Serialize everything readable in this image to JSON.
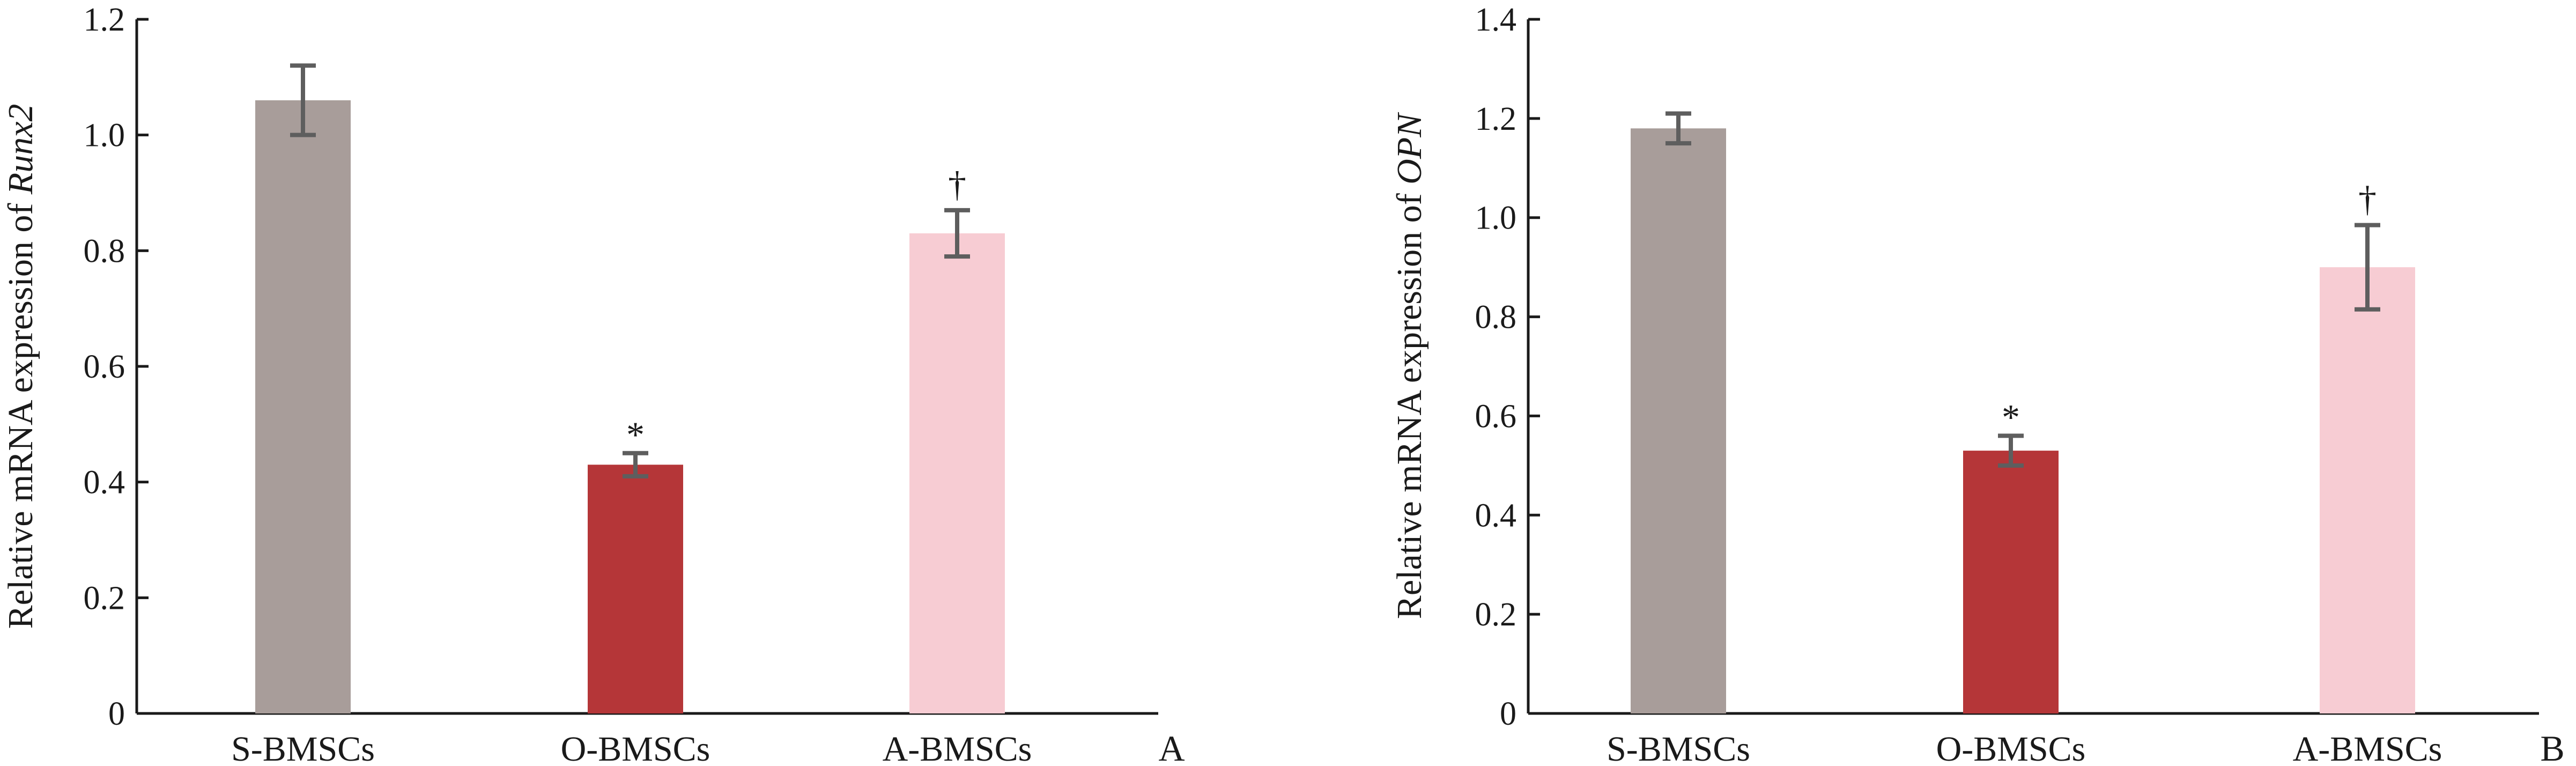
{
  "colors": {
    "S-BMSCs": "#a89d9a",
    "O-BMSCs": "#b53638",
    "A-BMSCs": "#f7ccd3"
  },
  "chart_data": [
    {
      "type": "bar",
      "panel": "A",
      "categories": [
        "S-BMSCs",
        "O-BMSCs",
        "A-BMSCs"
      ],
      "values": [
        1.06,
        0.43,
        0.83
      ],
      "errors": [
        0.06,
        0.02,
        0.04
      ],
      "annotations": [
        "",
        "*",
        "†"
      ],
      "ylabel_prefix": "Relative mRNA expression of ",
      "ylabel_gene": "Runx2",
      "ylim": [
        0,
        1.2
      ],
      "yticks": [
        0,
        0.2,
        0.4,
        0.6,
        0.8,
        1.0,
        1.2
      ],
      "ytick_labels": [
        "0",
        "0.2",
        "0.4",
        "0.6",
        "0.8",
        "1.0",
        "1.2"
      ],
      "grid": false
    },
    {
      "type": "bar",
      "panel": "B",
      "categories": [
        "S-BMSCs",
        "O-BMSCs",
        "A-BMSCs"
      ],
      "values": [
        1.18,
        0.53,
        0.9
      ],
      "errors": [
        0.03,
        0.03,
        0.085
      ],
      "annotations": [
        "",
        "*",
        "†"
      ],
      "ylabel_prefix": "Relative mRNA expression of ",
      "ylabel_gene": "OPN",
      "ylim": [
        0,
        1.4
      ],
      "yticks": [
        0,
        0.2,
        0.4,
        0.6,
        0.8,
        1.0,
        1.2,
        1.4
      ],
      "ytick_labels": [
        "0",
        "0.2",
        "0.4",
        "0.6",
        "0.8",
        "1.0",
        "1.2",
        "1.4"
      ],
      "grid": false
    }
  ]
}
